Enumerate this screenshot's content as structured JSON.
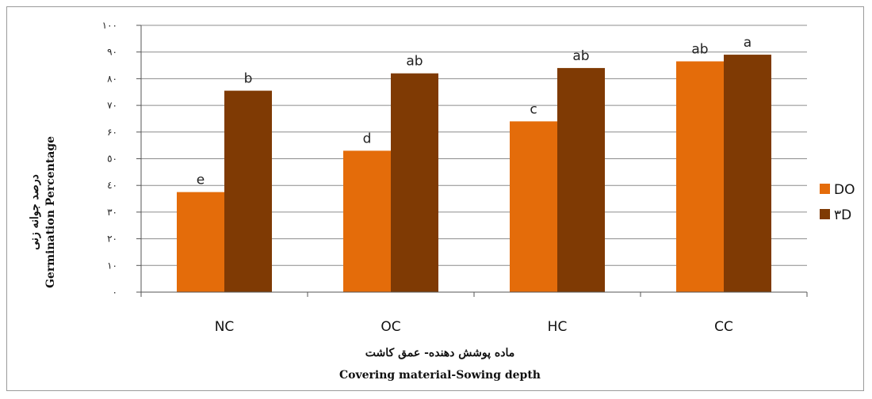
{
  "chart_data": {
    "type": "bar",
    "categories": [
      "NC",
      "OC",
      "HC",
      "CC"
    ],
    "series": [
      {
        "name": "DO",
        "color": "#E46C0A",
        "values": [
          37.5,
          53,
          64,
          86.5
        ],
        "labels": [
          "e",
          "d",
          "c",
          "ab"
        ]
      },
      {
        "name": "٣D",
        "color": "#7F3A04",
        "values": [
          75.5,
          82,
          84,
          89
        ],
        "labels": [
          "b",
          "ab",
          "ab",
          "a"
        ]
      }
    ],
    "ylim": [
      0,
      100
    ],
    "yticks": [
      0,
      10,
      20,
      30,
      40,
      50,
      60,
      70,
      80,
      90,
      100
    ],
    "ytick_labels": [
      "٠",
      "١٠",
      "٢٠",
      "٣٠",
      "٤٠",
      "٥٠",
      "۶٠",
      "٧٠",
      "٨٠",
      "٩٠",
      "١٠٠"
    ],
    "ylabel_fa": "درصد جوانه زنی",
    "ylabel_en": "Germination Percentage",
    "xlabel_fa": "ماده پوشش دهنده- عمق کاشت",
    "xlabel_en": "Covering material-Sowing depth",
    "grid": true,
    "legend_position": "right"
  }
}
